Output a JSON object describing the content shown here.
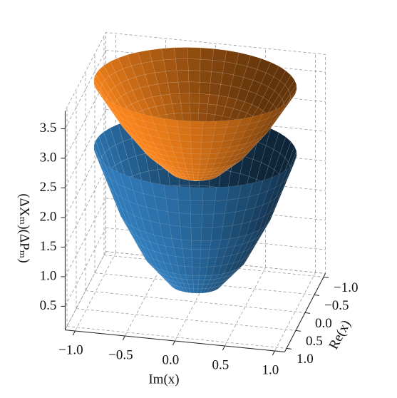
{
  "chart_data": {
    "type": "surface3d",
    "xlabel": "Im(x)",
    "ylabel": "Re(x)",
    "zlabel": "(ΔXₘ)(ΔPₘ)",
    "xlim": [
      -1.1,
      1.1
    ],
    "ylim": [
      -1.1,
      1.1
    ],
    "zlim": [
      0.1,
      3.8
    ],
    "xticks": [
      {
        "value": -1,
        "label": "−1.0"
      },
      {
        "value": -0.5,
        "label": "−0.5"
      },
      {
        "value": 0,
        "label": "0.0"
      },
      0.5,
      {
        "value": 1,
        "label": "1.0"
      }
    ],
    "yticks": [
      {
        "value": -1,
        "label": "−1.0"
      },
      {
        "value": -0.5,
        "label": "−0.5"
      },
      {
        "value": 0,
        "label": "0.0"
      },
      0.5,
      {
        "value": 1,
        "label": "1.0"
      }
    ],
    "zticks": [
      0.5,
      {
        "value": 1,
        "label": "1.0"
      },
      1.5,
      {
        "value": 2,
        "label": "2.0"
      },
      2.5,
      {
        "value": 3,
        "label": "3.0"
      },
      3.5
    ],
    "radius": [
      0,
      0.25,
      0.5,
      0.75,
      1
    ],
    "series": [
      {
        "color": "#2e78b5",
        "values": [
          0.25,
          0.4,
          0.85,
          1.6,
          2.65
        ]
      },
      {
        "color": "#f07f1a",
        "values": [
          2.14,
          2.3,
          2.65,
          3.15,
          3.77
        ]
      }
    ],
    "grid": true
  }
}
